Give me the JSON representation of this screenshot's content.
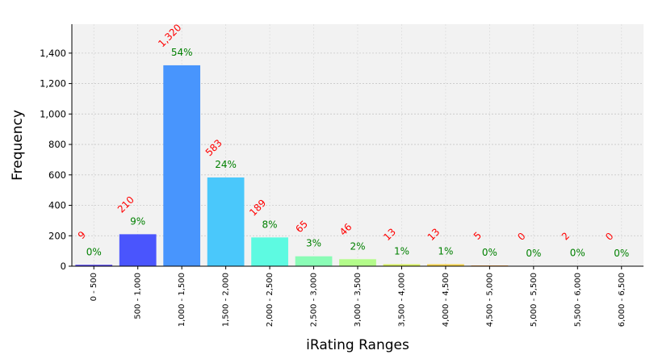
{
  "chart_data": {
    "type": "bar",
    "title": "",
    "xlabel": "iRating Ranges",
    "ylabel": "Frequency",
    "categories": [
      "0 - 500",
      "500 - 1,000",
      "1,000 - 1,500",
      "1,500 - 2,000",
      "2,000 - 2,500",
      "2,500 - 3,000",
      "3,000 - 3,500",
      "3,500 - 4,000",
      "4,000 - 4,500",
      "4,500 - 5,000",
      "5,000 - 5,500",
      "5,500 - 6,000",
      "6,000 - 6,500"
    ],
    "values": [
      9,
      210,
      1320,
      583,
      189,
      65,
      46,
      13,
      13,
      5,
      0,
      2,
      0
    ],
    "count_labels": [
      "9",
      "210",
      "1,320",
      "583",
      "189",
      "65",
      "46",
      "13",
      "13",
      "5",
      "0",
      "2",
      "0"
    ],
    "percent_labels": [
      "0%",
      "9%",
      "54%",
      "24%",
      "8%",
      "3%",
      "2%",
      "1%",
      "1%",
      "0%",
      "0%",
      "0%",
      "0%"
    ],
    "colors": [
      "#4b3bf0",
      "#4a55fd",
      "#4895fd",
      "#4ac8fb",
      "#5dfae1",
      "#8afcb6",
      "#b3fb8a",
      "#d8f05f",
      "#f5d24a",
      "#ffa84a",
      "#ff7a3a",
      "#f2492b",
      "#d01f1f"
    ],
    "ylim": [
      0,
      1590
    ],
    "yticks": [
      0,
      200,
      400,
      600,
      800,
      1000,
      1200,
      1400
    ],
    "ytick_labels": [
      "0",
      "200",
      "400",
      "600",
      "800",
      "1,000",
      "1,200",
      "1,400"
    ],
    "grid": true,
    "background": "#f2f2f2",
    "count_label_color": "#ff0000",
    "percent_label_color": "#008000"
  }
}
